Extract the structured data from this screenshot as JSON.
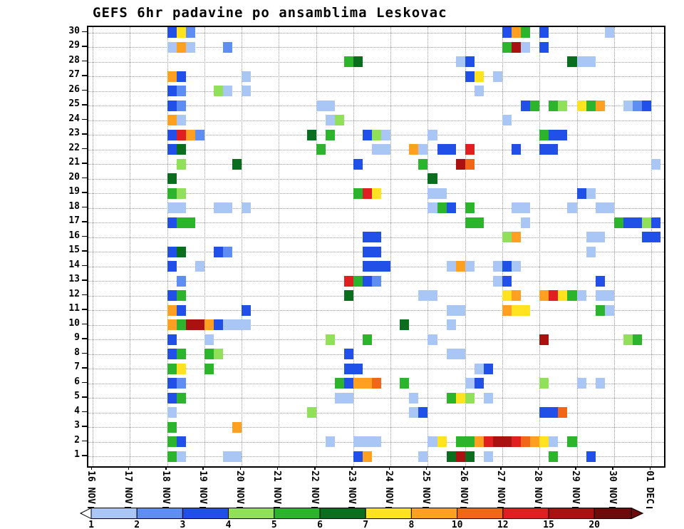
{
  "chart_data": {
    "type": "heatmap",
    "title": "GEFS 6hr padavine po ansamblima Leskovac",
    "xlabel": "",
    "ylabel": "",
    "grid": "dotted",
    "x_tick_labels": [
      "16 NOV",
      "17 NOV",
      "18 NOV",
      "19 NOV",
      "20 NOV",
      "21 NOV",
      "22 NOV",
      "23 NOV",
      "24 NOV",
      "25 NOV",
      "26 NOV",
      "27 NOV",
      "28 NOV",
      "29 NOV",
      "30 NOV",
      "01 DEC"
    ],
    "n_rows": 30,
    "n_columns": 61,
    "columns_per_day": 4,
    "y_range": [
      1,
      30
    ],
    "legend": {
      "position": "bottom",
      "values": [
        1,
        2,
        3,
        4,
        5,
        6,
        7,
        8,
        10,
        12,
        15,
        20
      ],
      "under_color": "#ffffff",
      "over_color": "#6e0a0a",
      "palette": {
        "1": "#a9c6f5",
        "2": "#5f8ef2",
        "3": "#2050e8",
        "4": "#90e05a",
        "5": "#2cb42c",
        "6": "#0a6e1e",
        "7": "#ffe320",
        "8": "#ffa020",
        "10": "#f26618",
        "12": "#e02020",
        "15": "#aa1212",
        "20": "#6e0a0a"
      }
    },
    "cells": [
      [
        30,
        8,
        "3"
      ],
      [
        30,
        9,
        "7"
      ],
      [
        30,
        10,
        "2"
      ],
      [
        30,
        44,
        "3"
      ],
      [
        30,
        45,
        "8"
      ],
      [
        30,
        46,
        "5"
      ],
      [
        30,
        48,
        "3"
      ],
      [
        30,
        55,
        "1"
      ],
      [
        29,
        8,
        "1"
      ],
      [
        29,
        9,
        "8"
      ],
      [
        29,
        10,
        "1"
      ],
      [
        29,
        14,
        "2"
      ],
      [
        29,
        44,
        "5"
      ],
      [
        29,
        45,
        "15"
      ],
      [
        29,
        46,
        "1"
      ],
      [
        29,
        48,
        "3"
      ],
      [
        28,
        27,
        "5"
      ],
      [
        28,
        28,
        "6"
      ],
      [
        28,
        39,
        "1"
      ],
      [
        28,
        40,
        "3"
      ],
      [
        28,
        51,
        "6"
      ],
      [
        28,
        52,
        "1"
      ],
      [
        28,
        53,
        "1"
      ],
      [
        27,
        8,
        "8"
      ],
      [
        27,
        9,
        "3"
      ],
      [
        27,
        16,
        "1"
      ],
      [
        27,
        40,
        "3"
      ],
      [
        27,
        41,
        "7"
      ],
      [
        27,
        43,
        "1"
      ],
      [
        26,
        8,
        "3"
      ],
      [
        26,
        9,
        "2"
      ],
      [
        26,
        13,
        "4"
      ],
      [
        26,
        14,
        "1"
      ],
      [
        26,
        16,
        "1"
      ],
      [
        26,
        41,
        "1"
      ],
      [
        25,
        8,
        "3"
      ],
      [
        25,
        9,
        "2"
      ],
      [
        25,
        24,
        "1"
      ],
      [
        25,
        25,
        "1"
      ],
      [
        25,
        46,
        "3"
      ],
      [
        25,
        47,
        "5"
      ],
      [
        25,
        49,
        "5"
      ],
      [
        25,
        50,
        "4"
      ],
      [
        25,
        52,
        "7"
      ],
      [
        25,
        53,
        "5"
      ],
      [
        25,
        54,
        "8"
      ],
      [
        25,
        57,
        "1"
      ],
      [
        25,
        58,
        "2"
      ],
      [
        25,
        59,
        "3"
      ],
      [
        24,
        8,
        "8"
      ],
      [
        24,
        9,
        "1"
      ],
      [
        24,
        25,
        "1"
      ],
      [
        24,
        26,
        "4"
      ],
      [
        24,
        44,
        "1"
      ],
      [
        23,
        8,
        "3"
      ],
      [
        23,
        9,
        "12"
      ],
      [
        23,
        10,
        "8"
      ],
      [
        23,
        11,
        "2"
      ],
      [
        23,
        23,
        "6"
      ],
      [
        23,
        25,
        "5"
      ],
      [
        23,
        29,
        "3"
      ],
      [
        23,
        30,
        "4"
      ],
      [
        23,
        31,
        "1"
      ],
      [
        23,
        36,
        "1"
      ],
      [
        23,
        48,
        "5"
      ],
      [
        23,
        49,
        "3"
      ],
      [
        23,
        50,
        "3"
      ],
      [
        22,
        8,
        "3"
      ],
      [
        22,
        9,
        "6"
      ],
      [
        22,
        24,
        "5"
      ],
      [
        22,
        30,
        "1"
      ],
      [
        22,
        31,
        "1"
      ],
      [
        22,
        34,
        "8"
      ],
      [
        22,
        35,
        "1"
      ],
      [
        22,
        37,
        "3"
      ],
      [
        22,
        38,
        "3"
      ],
      [
        22,
        40,
        "12"
      ],
      [
        22,
        45,
        "3"
      ],
      [
        22,
        48,
        "3"
      ],
      [
        22,
        49,
        "3"
      ],
      [
        21,
        9,
        "4"
      ],
      [
        21,
        15,
        "6"
      ],
      [
        21,
        28,
        "3"
      ],
      [
        21,
        35,
        "5"
      ],
      [
        21,
        39,
        "15"
      ],
      [
        21,
        40,
        "10"
      ],
      [
        21,
        60,
        "1"
      ],
      [
        20,
        8,
        "6"
      ],
      [
        20,
        36,
        "6"
      ],
      [
        19,
        8,
        "5"
      ],
      [
        19,
        9,
        "4"
      ],
      [
        19,
        28,
        "5"
      ],
      [
        19,
        29,
        "12"
      ],
      [
        19,
        30,
        "7"
      ],
      [
        19,
        36,
        "1"
      ],
      [
        19,
        37,
        "1"
      ],
      [
        19,
        52,
        "3"
      ],
      [
        19,
        53,
        "1"
      ],
      [
        18,
        8,
        "1"
      ],
      [
        18,
        9,
        "1"
      ],
      [
        18,
        13,
        "1"
      ],
      [
        18,
        14,
        "1"
      ],
      [
        18,
        16,
        "1"
      ],
      [
        18,
        36,
        "1"
      ],
      [
        18,
        37,
        "5"
      ],
      [
        18,
        38,
        "3"
      ],
      [
        18,
        40,
        "5"
      ],
      [
        18,
        45,
        "1"
      ],
      [
        18,
        46,
        "1"
      ],
      [
        18,
        51,
        "1"
      ],
      [
        18,
        54,
        "1"
      ],
      [
        18,
        55,
        "1"
      ],
      [
        17,
        8,
        "3"
      ],
      [
        17,
        9,
        "5"
      ],
      [
        17,
        10,
        "5"
      ],
      [
        17,
        40,
        "5"
      ],
      [
        17,
        41,
        "5"
      ],
      [
        17,
        46,
        "1"
      ],
      [
        17,
        56,
        "5"
      ],
      [
        17,
        57,
        "3"
      ],
      [
        17,
        58,
        "3"
      ],
      [
        17,
        59,
        "4"
      ],
      [
        17,
        60,
        "3"
      ],
      [
        16,
        29,
        "3"
      ],
      [
        16,
        30,
        "3"
      ],
      [
        16,
        44,
        "4"
      ],
      [
        16,
        45,
        "8"
      ],
      [
        16,
        53,
        "1"
      ],
      [
        16,
        54,
        "1"
      ],
      [
        16,
        59,
        "3"
      ],
      [
        16,
        60,
        "3"
      ],
      [
        15,
        8,
        "3"
      ],
      [
        15,
        9,
        "6"
      ],
      [
        15,
        13,
        "3"
      ],
      [
        15,
        14,
        "2"
      ],
      [
        15,
        29,
        "3"
      ],
      [
        15,
        30,
        "3"
      ],
      [
        15,
        53,
        "1"
      ],
      [
        14,
        8,
        "3"
      ],
      [
        14,
        11,
        "1"
      ],
      [
        14,
        29,
        "3"
      ],
      [
        14,
        30,
        "3"
      ],
      [
        14,
        31,
        "3"
      ],
      [
        14,
        38,
        "1"
      ],
      [
        14,
        39,
        "8"
      ],
      [
        14,
        40,
        "1"
      ],
      [
        14,
        43,
        "1"
      ],
      [
        14,
        44,
        "3"
      ],
      [
        14,
        45,
        "1"
      ],
      [
        13,
        9,
        "2"
      ],
      [
        13,
        27,
        "12"
      ],
      [
        13,
        28,
        "5"
      ],
      [
        13,
        29,
        "3"
      ],
      [
        13,
        30,
        "2"
      ],
      [
        13,
        43,
        "1"
      ],
      [
        13,
        44,
        "3"
      ],
      [
        13,
        54,
        "3"
      ],
      [
        12,
        8,
        "3"
      ],
      [
        12,
        9,
        "5"
      ],
      [
        12,
        27,
        "6"
      ],
      [
        12,
        35,
        "1"
      ],
      [
        12,
        36,
        "1"
      ],
      [
        12,
        44,
        "7"
      ],
      [
        12,
        45,
        "8"
      ],
      [
        12,
        48,
        "8"
      ],
      [
        12,
        49,
        "12"
      ],
      [
        12,
        50,
        "7"
      ],
      [
        12,
        51,
        "5"
      ],
      [
        12,
        52,
        "1"
      ],
      [
        12,
        54,
        "1"
      ],
      [
        12,
        55,
        "1"
      ],
      [
        11,
        8,
        "8"
      ],
      [
        11,
        9,
        "3"
      ],
      [
        11,
        16,
        "3"
      ],
      [
        11,
        38,
        "1"
      ],
      [
        11,
        39,
        "1"
      ],
      [
        11,
        44,
        "8"
      ],
      [
        11,
        45,
        "7"
      ],
      [
        11,
        46,
        "7"
      ],
      [
        11,
        54,
        "5"
      ],
      [
        11,
        55,
        "1"
      ],
      [
        10,
        8,
        "8"
      ],
      [
        10,
        9,
        "5"
      ],
      [
        10,
        10,
        "15"
      ],
      [
        10,
        11,
        "15"
      ],
      [
        10,
        12,
        "8"
      ],
      [
        10,
        13,
        "3"
      ],
      [
        10,
        14,
        "1"
      ],
      [
        10,
        15,
        "1"
      ],
      [
        10,
        16,
        "1"
      ],
      [
        10,
        33,
        "6"
      ],
      [
        10,
        38,
        "1"
      ],
      [
        9,
        8,
        "3"
      ],
      [
        9,
        12,
        "1"
      ],
      [
        9,
        25,
        "4"
      ],
      [
        9,
        29,
        "5"
      ],
      [
        9,
        36,
        "1"
      ],
      [
        9,
        48,
        "15"
      ],
      [
        9,
        57,
        "4"
      ],
      [
        9,
        58,
        "5"
      ],
      [
        8,
        8,
        "3"
      ],
      [
        8,
        9,
        "5"
      ],
      [
        8,
        12,
        "5"
      ],
      [
        8,
        13,
        "4"
      ],
      [
        8,
        27,
        "3"
      ],
      [
        8,
        38,
        "1"
      ],
      [
        8,
        39,
        "1"
      ],
      [
        7,
        8,
        "5"
      ],
      [
        7,
        9,
        "7"
      ],
      [
        7,
        12,
        "5"
      ],
      [
        7,
        27,
        "3"
      ],
      [
        7,
        28,
        "3"
      ],
      [
        7,
        41,
        "1"
      ],
      [
        7,
        42,
        "3"
      ],
      [
        6,
        8,
        "3"
      ],
      [
        6,
        9,
        "2"
      ],
      [
        6,
        26,
        "5"
      ],
      [
        6,
        27,
        "3"
      ],
      [
        6,
        28,
        "8"
      ],
      [
        6,
        29,
        "8"
      ],
      [
        6,
        30,
        "10"
      ],
      [
        6,
        33,
        "5"
      ],
      [
        6,
        40,
        "1"
      ],
      [
        6,
        41,
        "3"
      ],
      [
        6,
        48,
        "4"
      ],
      [
        6,
        52,
        "1"
      ],
      [
        6,
        54,
        "1"
      ],
      [
        5,
        8,
        "3"
      ],
      [
        5,
        9,
        "5"
      ],
      [
        5,
        26,
        "1"
      ],
      [
        5,
        27,
        "1"
      ],
      [
        5,
        34,
        "1"
      ],
      [
        5,
        38,
        "5"
      ],
      [
        5,
        39,
        "7"
      ],
      [
        5,
        40,
        "4"
      ],
      [
        5,
        42,
        "1"
      ],
      [
        4,
        8,
        "1"
      ],
      [
        4,
        23,
        "4"
      ],
      [
        4,
        34,
        "1"
      ],
      [
        4,
        35,
        "3"
      ],
      [
        4,
        48,
        "3"
      ],
      [
        4,
        49,
        "3"
      ],
      [
        4,
        50,
        "10"
      ],
      [
        3,
        8,
        "5"
      ],
      [
        3,
        15,
        "8"
      ],
      [
        2,
        8,
        "5"
      ],
      [
        2,
        9,
        "3"
      ],
      [
        2,
        25,
        "1"
      ],
      [
        2,
        28,
        "1"
      ],
      [
        2,
        29,
        "1"
      ],
      [
        2,
        30,
        "1"
      ],
      [
        2,
        36,
        "1"
      ],
      [
        2,
        37,
        "7"
      ],
      [
        2,
        39,
        "5"
      ],
      [
        2,
        40,
        "5"
      ],
      [
        2,
        41,
        "8"
      ],
      [
        2,
        42,
        "12"
      ],
      [
        2,
        43,
        "15"
      ],
      [
        2,
        44,
        "15"
      ],
      [
        2,
        45,
        "12"
      ],
      [
        2,
        46,
        "10"
      ],
      [
        2,
        47,
        "8"
      ],
      [
        2,
        48,
        "7"
      ],
      [
        2,
        49,
        "1"
      ],
      [
        2,
        51,
        "5"
      ],
      [
        1,
        8,
        "5"
      ],
      [
        1,
        9,
        "1"
      ],
      [
        1,
        14,
        "1"
      ],
      [
        1,
        15,
        "1"
      ],
      [
        1,
        28,
        "3"
      ],
      [
        1,
        29,
        "8"
      ],
      [
        1,
        35,
        "1"
      ],
      [
        1,
        38,
        "6"
      ],
      [
        1,
        39,
        "15"
      ],
      [
        1,
        40,
        "6"
      ],
      [
        1,
        42,
        "1"
      ],
      [
        1,
        49,
        "5"
      ],
      [
        1,
        53,
        "3"
      ]
    ]
  }
}
